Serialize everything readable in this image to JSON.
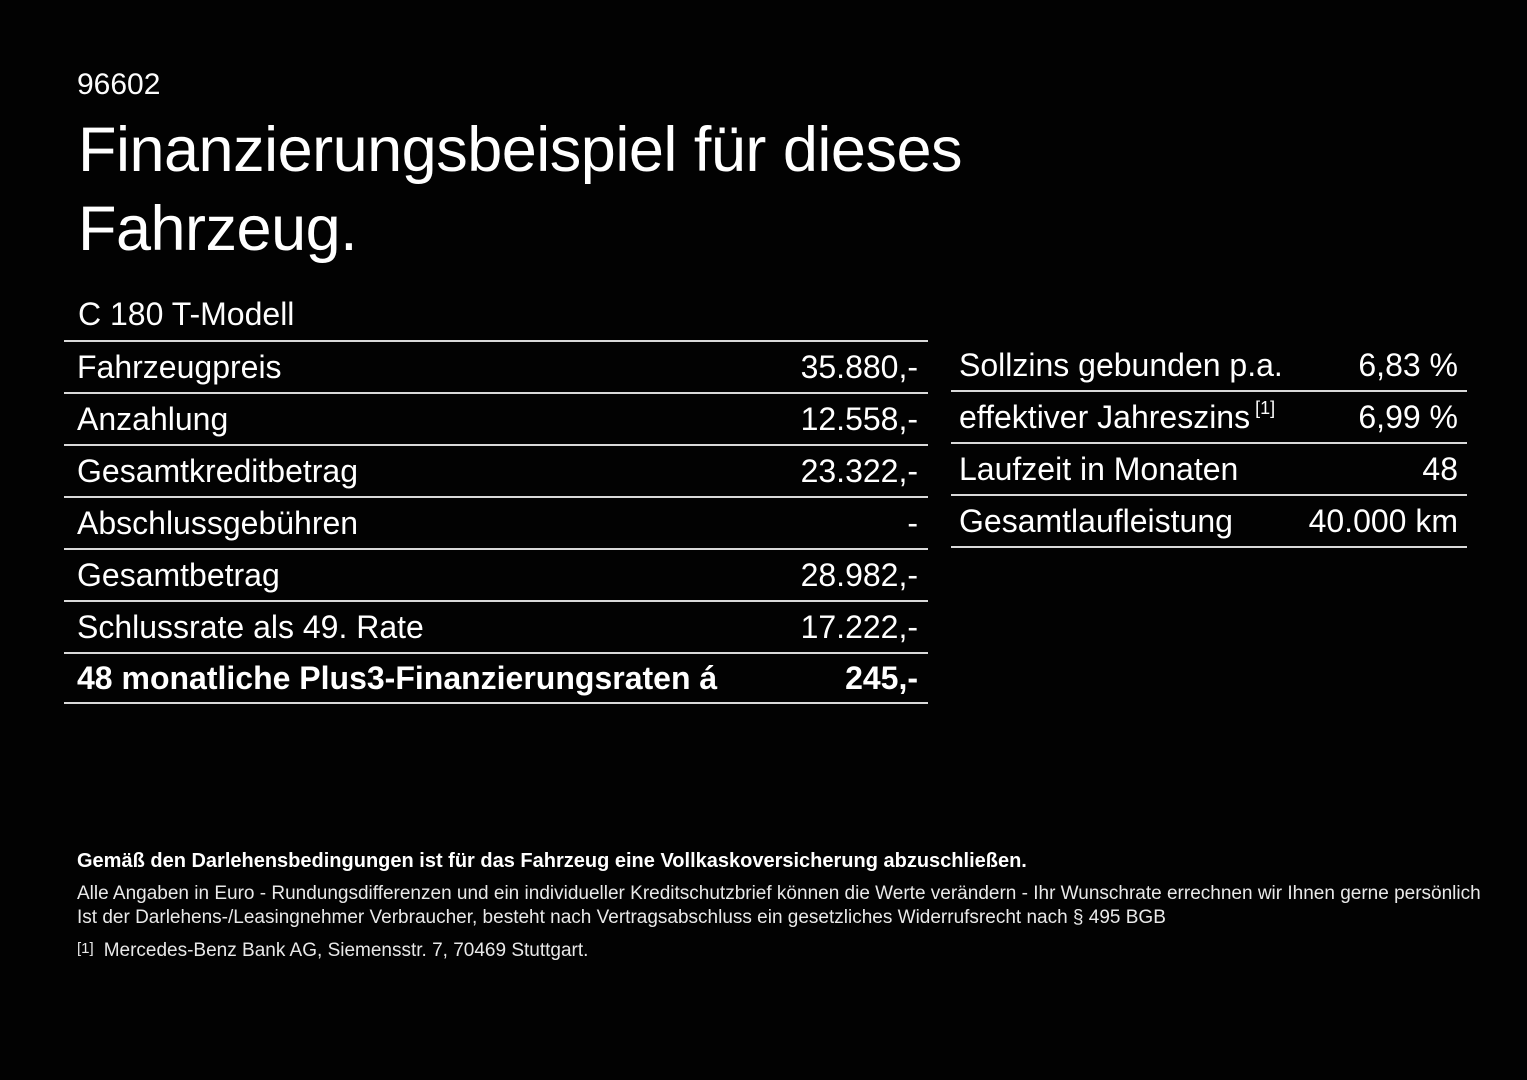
{
  "page": {
    "code": "96602",
    "title_line1": "Finanzierungsbeispiel für dieses",
    "title_line2": "Fahrzeug.",
    "model": "C 180 T-Modell"
  },
  "finance_table": {
    "rows": [
      {
        "label": "Fahrzeugpreis",
        "value": "35.880,-"
      },
      {
        "label": "Anzahlung",
        "value": "12.558,-"
      },
      {
        "label": "Gesamtkreditbetrag",
        "value": "23.322,-"
      },
      {
        "label": "Abschlussgebühren",
        "value": "-"
      },
      {
        "label": "Gesamtbetrag",
        "value": "28.982,-"
      },
      {
        "label": "Schlussrate als 49. Rate",
        "value": "17.222,-"
      },
      {
        "label": "48 monatliche Plus3-Finanzierungsraten á",
        "value": "245,-"
      }
    ]
  },
  "conditions_table": {
    "rows": [
      {
        "label": "Sollzins gebunden p.a.",
        "value": "6,83 %"
      },
      {
        "label": "effektiver Jahreszins",
        "footnote": "[1]",
        "value": "6,99 %"
      },
      {
        "label": "Laufzeit in Monaten",
        "value": "48"
      },
      {
        "label": "Gesamtlaufleistung",
        "value": "40.000 km"
      }
    ]
  },
  "footnotes": {
    "insurance_bold": "Gemäß den Darlehensbedingungen ist für das Fahrzeug eine Vollkaskoversicherung abzuschließen.",
    "disclaimer": "Alle Angaben in Euro - Rundungsdifferenzen und ein individueller Kreditschutzbrief können die Werte verändern - Ihr Wunschrate errechnen wir Ihnen gerne persönlich",
    "withdrawal": "Ist der Darlehens-/Leasingnehmer Verbraucher, besteht nach Vertragsabschluss ein gesetzliches Widerrufsrecht nach § 495 BGB",
    "ref_marker": "[1]",
    "ref_text": "Mercedes-Benz Bank AG, Siemensstr. 7, 70469 Stuttgart."
  },
  "colors": {
    "background": "#020202",
    "text": "#ffffff",
    "divider": "#d9d9d9"
  }
}
